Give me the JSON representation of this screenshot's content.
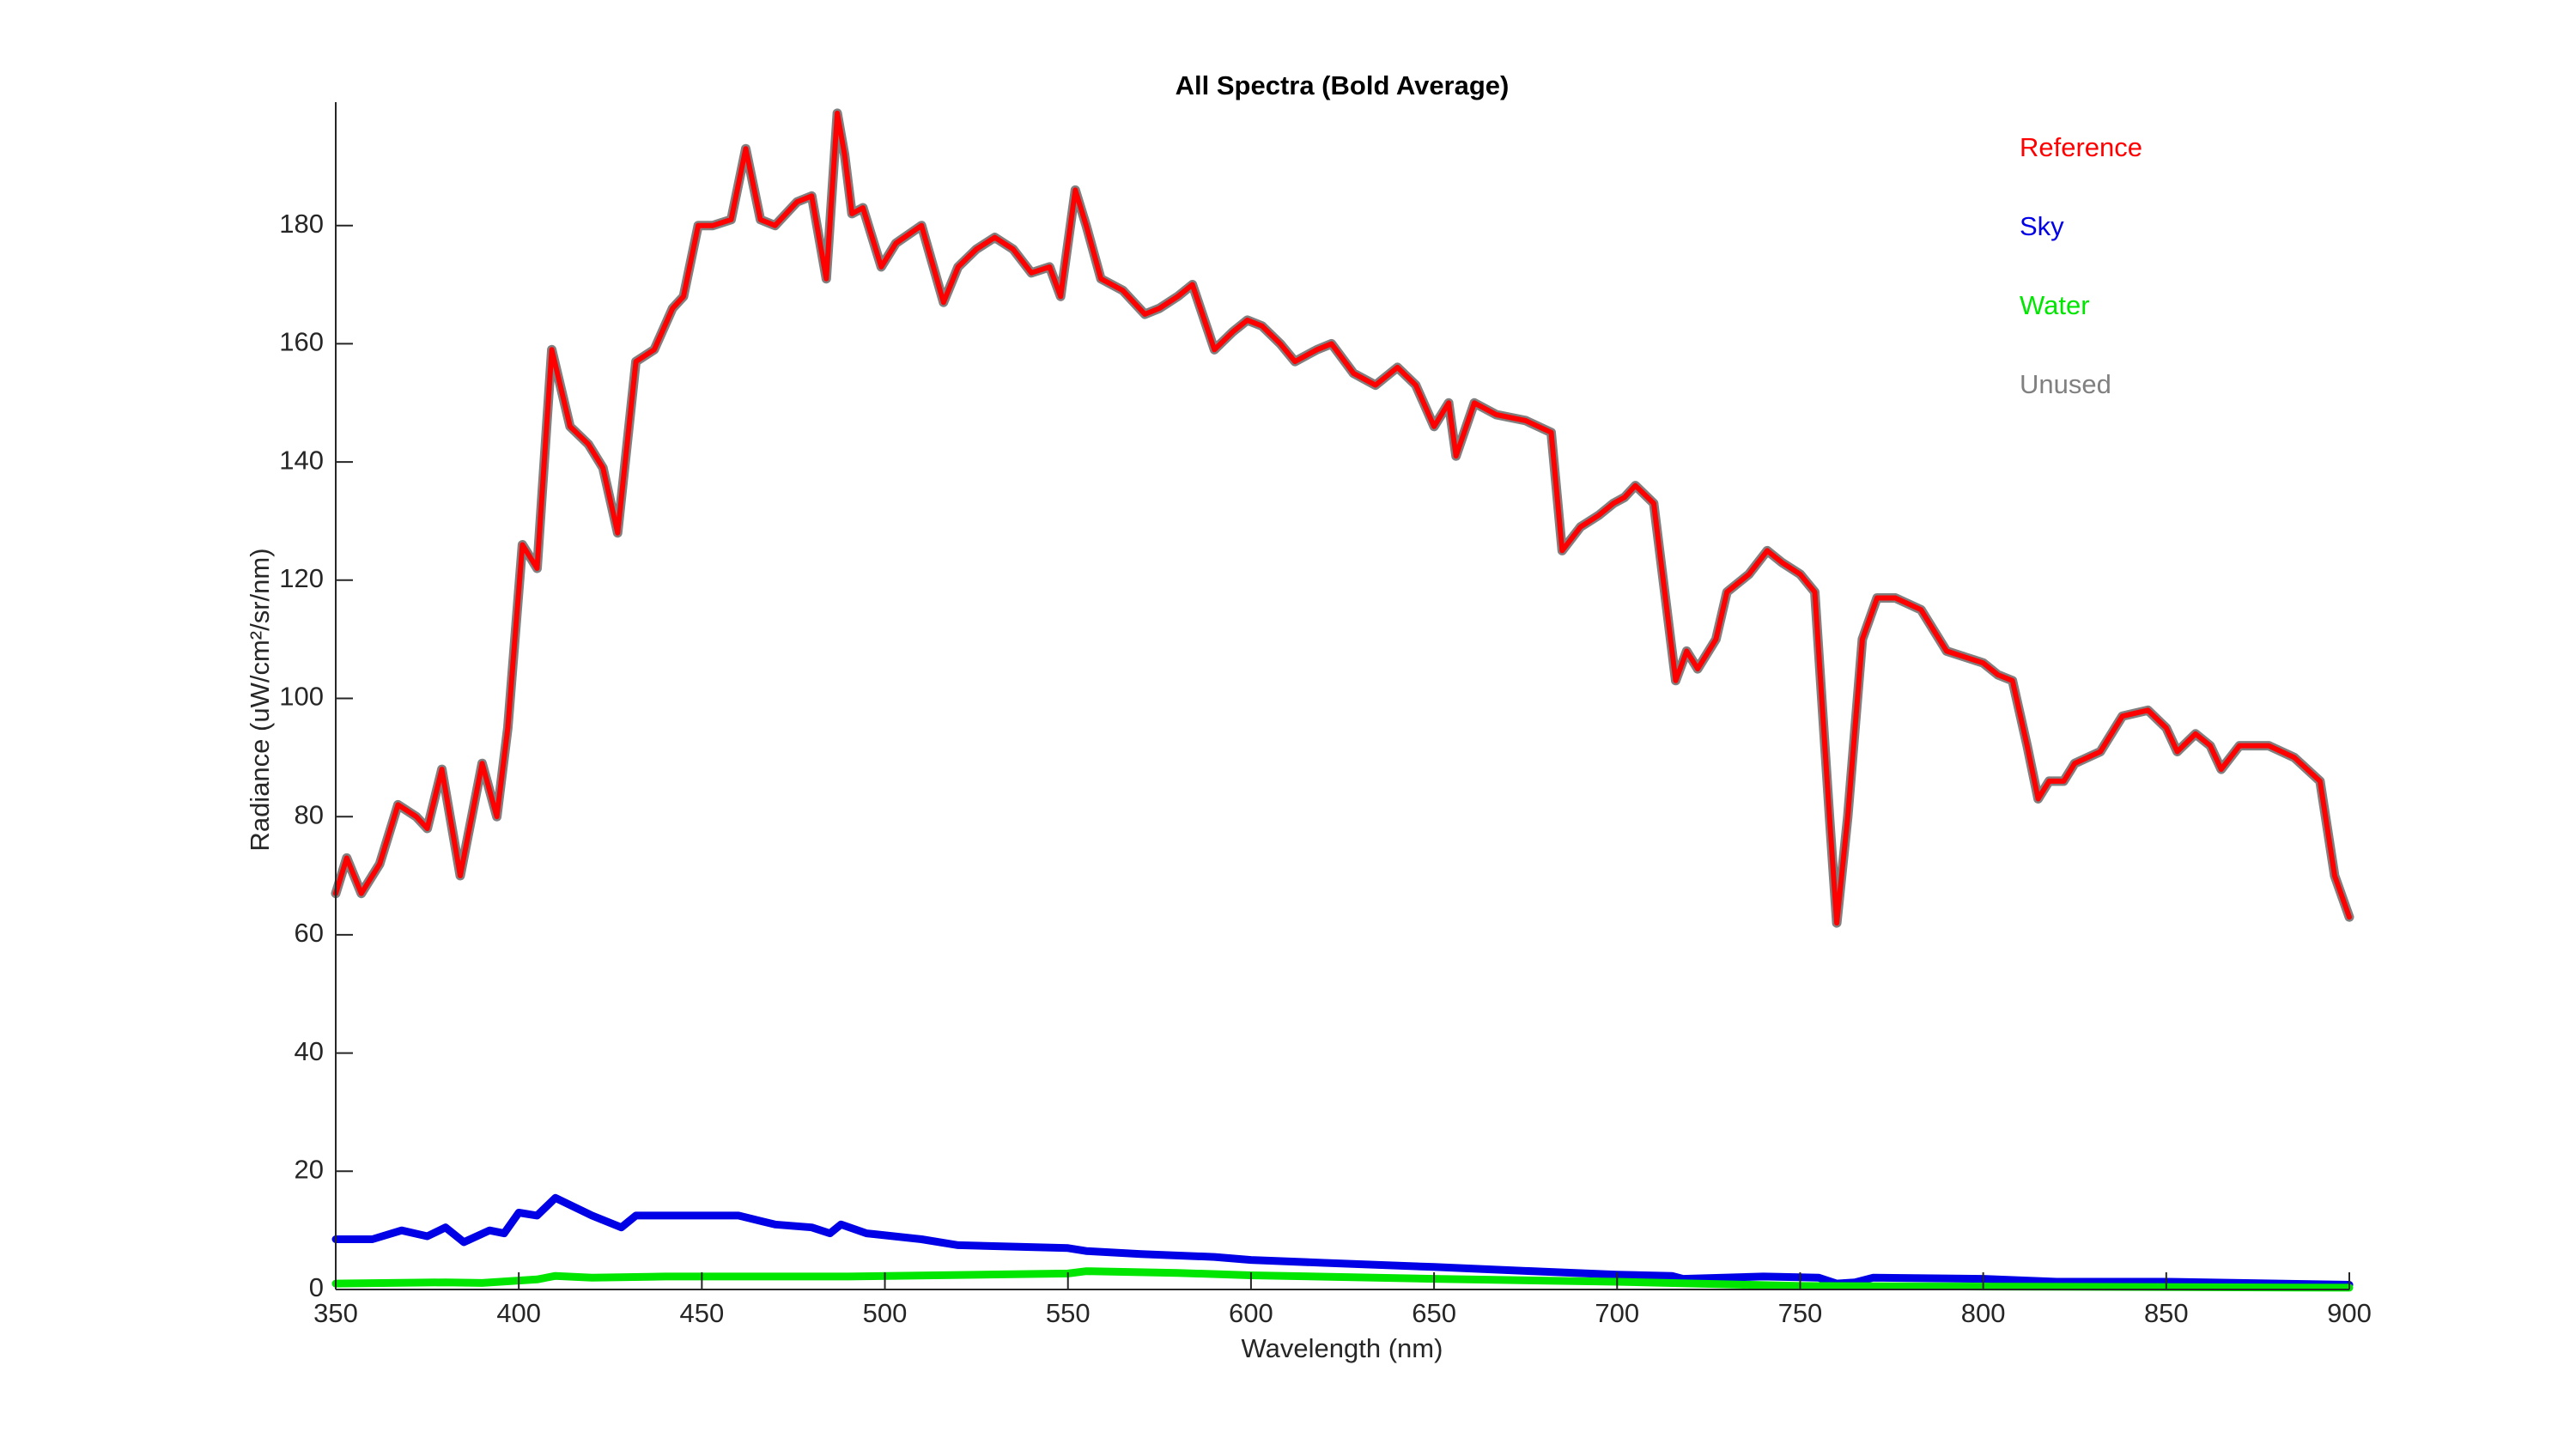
{
  "chart_data": {
    "type": "line",
    "title": "All Spectra (Bold Average)",
    "xlabel": "Wavelength (nm)",
    "ylabel": "Radiance (uW/cm²/sr/nm)",
    "xlim": [
      350,
      900
    ],
    "xticks": [
      350,
      400,
      450,
      500,
      550,
      600,
      650,
      700,
      750,
      800,
      850,
      900
    ],
    "ylim": [
      0,
      200
    ],
    "yticks": [
      0,
      20,
      40,
      60,
      80,
      100,
      120,
      140,
      160,
      180
    ],
    "legend": "top-right",
    "series": [
      {
        "name": "Reference",
        "color": "#ff0000",
        "x": [
          350,
          353,
          357,
          362,
          367,
          372,
          375,
          379,
          384,
          390,
          394,
          397,
          401,
          405,
          409,
          414,
          419,
          423,
          427,
          432,
          437,
          442,
          445,
          449,
          453,
          458,
          462,
          466,
          470,
          476,
          480,
          484,
          487,
          489,
          491,
          494,
          499,
          503,
          510,
          516,
          520,
          525,
          530,
          535,
          540,
          545,
          548,
          552,
          555,
          559,
          565,
          571,
          575,
          580,
          584,
          590,
          595,
          599,
          603,
          608,
          612,
          618,
          622,
          628,
          634,
          640,
          645,
          650,
          654,
          656,
          661,
          667,
          675,
          682,
          685,
          690,
          695,
          699,
          702,
          705,
          710,
          716,
          719,
          722,
          727,
          730,
          736,
          741,
          745,
          750,
          754,
          758,
          760,
          763,
          767,
          771,
          776,
          783,
          790,
          795,
          800,
          804,
          808,
          812,
          815,
          818,
          822,
          825,
          832,
          838,
          845,
          850,
          853,
          858,
          862,
          865,
          870,
          878,
          885,
          892,
          896,
          900
        ],
        "values": [
          67,
          73,
          67,
          72,
          82,
          80,
          78,
          88,
          70,
          89,
          80,
          95,
          126,
          122,
          159,
          146,
          143,
          139,
          128,
          157,
          159,
          166,
          168,
          180,
          180,
          181,
          193,
          181,
          180,
          184,
          185,
          171,
          199,
          192,
          182,
          183,
          173,
          177,
          180,
          167,
          173,
          176,
          178,
          176,
          172,
          173,
          168,
          186,
          180,
          171,
          169,
          165,
          166,
          168,
          170,
          159,
          162,
          164,
          163,
          160,
          157,
          159,
          160,
          155,
          153,
          156,
          153,
          146,
          150,
          141,
          150,
          148,
          147,
          145,
          125,
          129,
          131,
          133,
          134,
          136,
          133,
          103,
          108,
          105,
          110,
          118,
          121,
          125,
          123,
          121,
          118,
          80,
          62,
          80,
          110,
          117,
          117,
          115,
          108,
          107,
          106,
          104,
          103,
          92,
          83,
          86,
          86,
          89,
          91,
          97,
          98,
          95,
          91,
          94,
          92,
          88,
          92,
          92,
          90,
          86,
          70,
          63
        ]
      },
      {
        "name": "Sky",
        "color": "#0000e6",
        "x": [
          350,
          360,
          368,
          375,
          380,
          385,
          392,
          396,
          400,
          405,
          410,
          420,
          428,
          432,
          440,
          450,
          460,
          470,
          480,
          485,
          488,
          495,
          510,
          520,
          550,
          555,
          570,
          590,
          600,
          620,
          650,
          680,
          700,
          715,
          718,
          740,
          755,
          760,
          765,
          770,
          800,
          820,
          850,
          900
        ],
        "values": [
          8.5,
          8.5,
          10,
          9,
          10.5,
          8,
          10,
          9.5,
          13,
          12.5,
          15.5,
          12.5,
          10.5,
          12.5,
          12.5,
          12.5,
          12.5,
          11,
          10.5,
          9.5,
          11,
          9.5,
          8.5,
          7.5,
          7,
          6.5,
          6,
          5.5,
          5,
          4.5,
          3.8,
          3,
          2.5,
          2.3,
          1.8,
          2.2,
          2,
          1,
          1.2,
          2,
          1.8,
          1.3,
          1.3,
          0.8
        ]
      },
      {
        "name": "Water",
        "color": "#00e600",
        "x": [
          350,
          380,
          390,
          405,
          410,
          420,
          440,
          460,
          490,
          550,
          555,
          580,
          600,
          650,
          700,
          750,
          800,
          900
        ],
        "values": [
          1,
          1.2,
          1.1,
          1.7,
          2.3,
          2,
          2.2,
          2.2,
          2.2,
          2.7,
          3.1,
          2.8,
          2.4,
          1.8,
          1.3,
          0.6,
          0.5,
          0.3
        ]
      },
      {
        "name": "Unused",
        "color": "#808080",
        "x": [
          350,
          353,
          357,
          362,
          367,
          372,
          375,
          379,
          384,
          390,
          394,
          397,
          401,
          405,
          409,
          414,
          419,
          423,
          427,
          432,
          437,
          442,
          445,
          449,
          453,
          458,
          462,
          466,
          470,
          476,
          480,
          484,
          487,
          489,
          491,
          494,
          499,
          503,
          510,
          516,
          520,
          525,
          530,
          535,
          540,
          545,
          548,
          552,
          555,
          559,
          565,
          571,
          575,
          580,
          584,
          590,
          595,
          599,
          603,
          608,
          612,
          618,
          622,
          628,
          634,
          640,
          645,
          650,
          654,
          656,
          661,
          667,
          675,
          682,
          685,
          690,
          695,
          699,
          702,
          705,
          710,
          716,
          719,
          722,
          727,
          730,
          736,
          741,
          745,
          750,
          754,
          758,
          760,
          763,
          767,
          771,
          776,
          783,
          790,
          795,
          800,
          804,
          808,
          812,
          815,
          818,
          822,
          825,
          832,
          838,
          845,
          850,
          853,
          858,
          862,
          865,
          870,
          878,
          885,
          892,
          896,
          900
        ],
        "values": [
          67,
          73,
          67,
          72,
          82,
          80,
          78,
          88,
          70,
          89,
          80,
          95,
          126,
          122,
          159,
          146,
          143,
          139,
          128,
          157,
          159,
          166,
          168,
          180,
          180,
          181,
          193,
          181,
          180,
          184,
          185,
          171,
          199,
          192,
          182,
          183,
          173,
          177,
          180,
          167,
          173,
          176,
          178,
          176,
          172,
          173,
          168,
          186,
          180,
          171,
          169,
          165,
          166,
          168,
          170,
          159,
          162,
          164,
          163,
          160,
          157,
          159,
          160,
          155,
          153,
          156,
          153,
          146,
          150,
          141,
          150,
          148,
          147,
          145,
          125,
          129,
          131,
          133,
          134,
          136,
          133,
          103,
          108,
          105,
          110,
          118,
          121,
          125,
          123,
          121,
          118,
          80,
          62,
          80,
          110,
          117,
          117,
          115,
          108,
          107,
          106,
          104,
          103,
          92,
          83,
          86,
          86,
          89,
          91,
          97,
          98,
          95,
          91,
          94,
          92,
          88,
          92,
          92,
          90,
          86,
          70,
          63
        ]
      }
    ]
  }
}
